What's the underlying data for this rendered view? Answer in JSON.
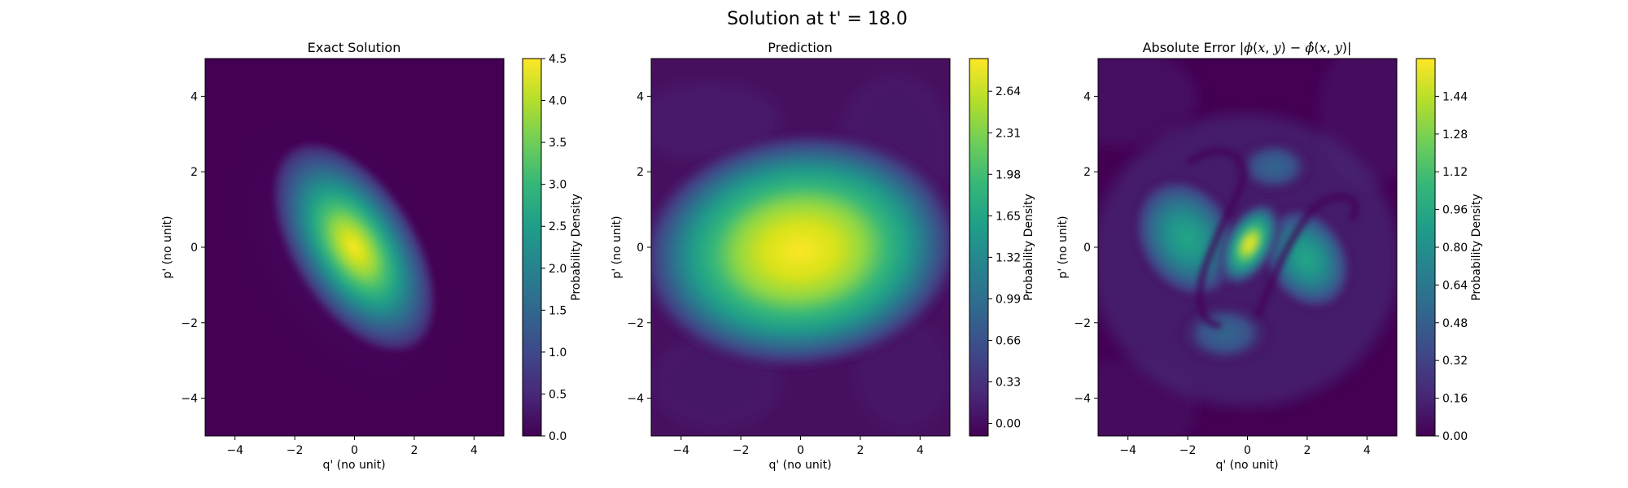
{
  "figure": {
    "suptitle": "Solution at t' = 18.0"
  },
  "chart_data": [
    {
      "type": "heatmap",
      "title": "Exact Solution",
      "xlabel": "q' (no unit)",
      "ylabel": "p' (no unit)",
      "xlim": [
        -5,
        5
      ],
      "ylim": [
        -5,
        5
      ],
      "x_ticks": [
        "−4",
        "−2",
        "0",
        "2",
        "4"
      ],
      "y_ticks": [
        "−4",
        "−2",
        "0",
        "2",
        "4"
      ],
      "colorbar_label": "Probability Density",
      "colorbar_range": [
        0,
        4.5
      ],
      "colorbar_ticks": [
        "0.0",
        "0.5",
        "1.0",
        "1.5",
        "2.0",
        "2.5",
        "3.0",
        "3.5",
        "4.0",
        "4.5"
      ],
      "colormap": "viridis",
      "peak": {
        "x": 0.0,
        "y": 0.0,
        "value": 4.5
      }
    },
    {
      "type": "heatmap",
      "title": "Prediction",
      "xlabel": "q' (no unit)",
      "ylabel": "p' (no unit)",
      "xlim": [
        -5,
        5
      ],
      "ylim": [
        -5,
        5
      ],
      "x_ticks": [
        "−4",
        "−2",
        "0",
        "2",
        "4"
      ],
      "y_ticks": [
        "−4",
        "−2",
        "0",
        "2",
        "4"
      ],
      "colorbar_label": "Probability Density",
      "colorbar_range": [
        -0.1,
        2.9
      ],
      "colorbar_ticks": [
        "0.00",
        "0.33",
        "0.66",
        "0.99",
        "1.32",
        "1.65",
        "1.98",
        "2.31",
        "2.64"
      ],
      "colormap": "viridis",
      "peak": {
        "x": 0.0,
        "y": -0.1,
        "value": 2.9
      }
    },
    {
      "type": "heatmap",
      "title_parts": [
        "Absolute Error |",
        "ϕ",
        "(",
        "x",
        ", ",
        "y",
        ") − ",
        "ϕ̂",
        "(",
        "x",
        ", ",
        "y",
        ")|"
      ],
      "xlabel": "q' (no unit)",
      "ylabel": "p' (no unit)",
      "xlim": [
        -5,
        5
      ],
      "ylim": [
        -5,
        5
      ],
      "x_ticks": [
        "−4",
        "−2",
        "0",
        "2",
        "4"
      ],
      "y_ticks": [
        "−4",
        "−2",
        "0",
        "2",
        "4"
      ],
      "colorbar_label": "Probability Density",
      "colorbar_range": [
        0,
        1.6
      ],
      "colorbar_ticks": [
        "0.00",
        "0.16",
        "0.32",
        "0.48",
        "0.64",
        "0.80",
        "0.96",
        "1.12",
        "1.28",
        "1.44"
      ],
      "colormap": "viridis",
      "peak": {
        "x": 0.0,
        "y": 0.2,
        "value": 1.6
      }
    }
  ],
  "colors": {
    "viridis": [
      "#440154",
      "#482878",
      "#3e4989",
      "#31688e",
      "#26828e",
      "#1f9e89",
      "#35b779",
      "#6ece58",
      "#b5de2b",
      "#fde725"
    ]
  }
}
